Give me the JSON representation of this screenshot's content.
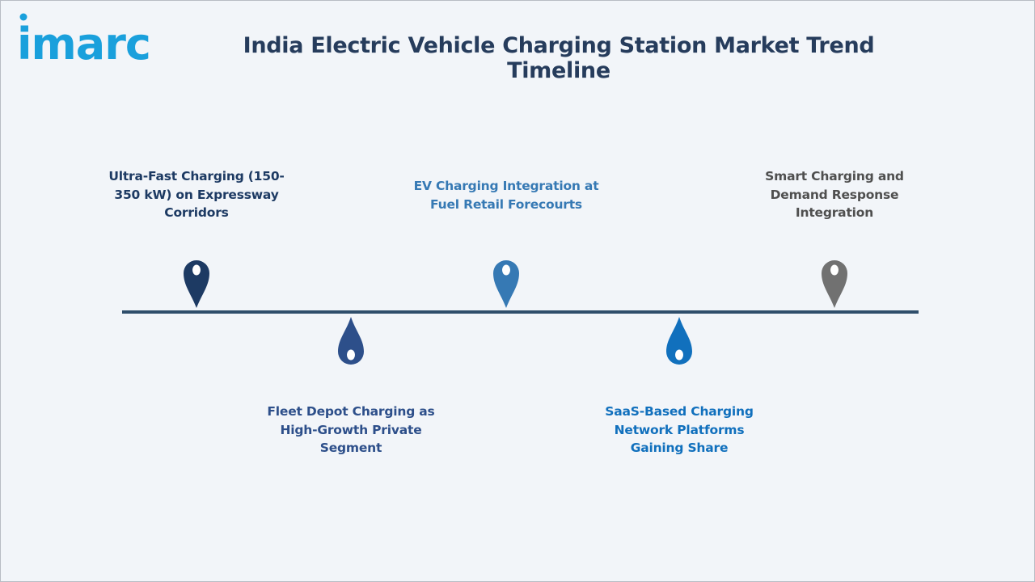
{
  "header": {
    "logo_text": "imarc",
    "title": "India Electric Vehicle Charging Station Market Trend Timeline"
  },
  "colors": {
    "background": "#f2f5f9",
    "title": "#263c5c",
    "logo": "#1aa0dc",
    "timeline_line": "#2f4e6b"
  },
  "timeline": {
    "items": [
      {
        "label": "Ultra-Fast Charging (150-350 kW) on Expressway Corridors",
        "position": "above",
        "color": "#1d3a63"
      },
      {
        "label": "Fleet Depot Charging as High-Growth Private Segment",
        "position": "below",
        "color": "#2d4f8a"
      },
      {
        "label": "EV Charging Integration at Fuel Retail Forecourts",
        "position": "above",
        "color": "#3679b4"
      },
      {
        "label": "SaaS-Based Charging Network Platforms Gaining Share",
        "position": "below",
        "color": "#1170bd"
      },
      {
        "label": "Smart Charging and Demand Response Integration",
        "position": "above",
        "color": "#717171"
      }
    ]
  }
}
